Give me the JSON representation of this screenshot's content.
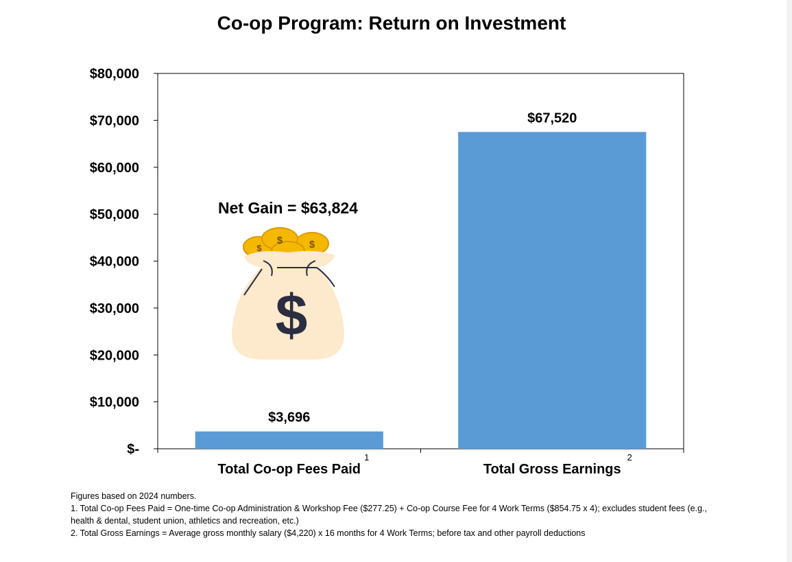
{
  "chart_data": {
    "type": "bar",
    "title": "Co-op Program:  Return on Investment",
    "categories": [
      "Total Co-op Fees Paid",
      "Total Gross Earnings"
    ],
    "category_superscripts": [
      "1",
      "2"
    ],
    "values": [
      3696,
      67520
    ],
    "data_labels": [
      "$3,696",
      "$67,520"
    ],
    "ylim": [
      0,
      80000
    ],
    "ytick_values": [
      0,
      10000,
      20000,
      30000,
      40000,
      50000,
      60000,
      70000,
      80000
    ],
    "ytick_labels": [
      "$-",
      "$10,000",
      "$20,000",
      "$30,000",
      "$40,000",
      "$50,000",
      "$60,000",
      "$70,000",
      "$80,000"
    ],
    "grid": false,
    "bar_color": "#5b9bd5",
    "annotation": "Net Gain = $63,824"
  },
  "footnotes": [
    "Figures based on 2024 numbers.",
    "1. Total Co-op Fees Paid = One-time Co-op Administration & Workshop Fee ($277.25) + Co-op Course Fee for 4 Work Terms ($854.75 x 4); excludes student fees  (e.g., health & dental, student union, athletics and recreation, etc.)",
    "2. Total Gross Earnings = Average gross monthly salary ($4,220) x 16 months for 4 Work Terms; before tax and other payroll deductions"
  ],
  "icons": {
    "money_bag": "money-bag-icon",
    "coins": "gold-coin-icon"
  },
  "colors": {
    "bag": "#fde9cb",
    "coin": "#f5b800",
    "coin_edge": "#d99a00",
    "dollar_sign": "#2b2d42"
  }
}
